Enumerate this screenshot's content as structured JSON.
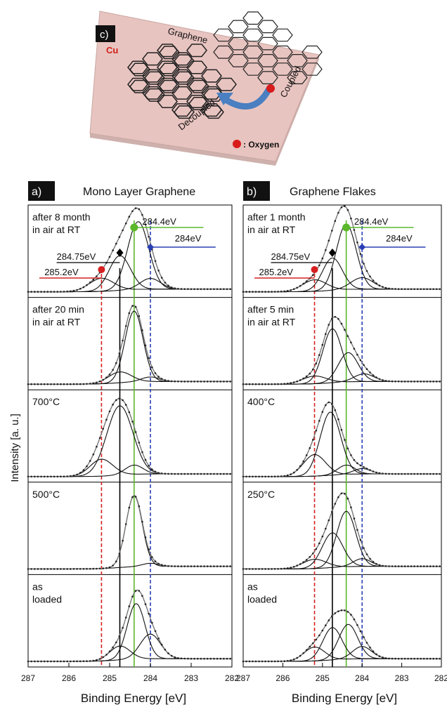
{
  "figure_c": {
    "label": "c)",
    "substrate": "Cu",
    "graphene": "Graphene",
    "coupled": "Coupled",
    "decoupled": "Decoupled",
    "legend_text": ": Oxygen",
    "colors": {
      "cu_surface": "#e8c4c0",
      "cu_edge": "#c9a7a3",
      "oxygen": "#d81b1b",
      "arrow": "#4a7fc1",
      "cu_label": "#d0201a"
    }
  },
  "shared": {
    "ylabel": "Intensity [a. u.]",
    "xlabel": "Binding Energy [eV]",
    "xticks": [
      287,
      286,
      285,
      284,
      283,
      282
    ],
    "xlim": [
      287,
      282
    ],
    "ref_lines": [
      {
        "energy": 285.2,
        "color": "#d62020",
        "style": "dashed"
      },
      {
        "energy": 284.75,
        "color": "#000000",
        "style": "solid"
      },
      {
        "energy": 284.4,
        "color": "#5bb82a",
        "style": "solid"
      },
      {
        "energy": 284.0,
        "color": "#2a3fb5",
        "style": "dashed"
      }
    ],
    "peak_labels": {
      "p1": "285.2eV",
      "p2": "284.75eV",
      "p3": "284.4eV",
      "p4": "284eV"
    }
  },
  "chart_data": [
    {
      "type": "line",
      "panel": "a)",
      "title": "Mono Layer Graphene",
      "xlim": [
        287,
        282
      ],
      "spectra": [
        {
          "label_lines": [
            "after 8 month",
            "in air at RT"
          ],
          "peaks": [
            {
              "c": 285.2,
              "a": 0.17,
              "w": 0.3
            },
            {
              "c": 284.75,
              "a": 0.45,
              "w": 0.26
            },
            {
              "c": 284.3,
              "a": 0.88,
              "w": 0.26
            },
            {
              "c": 284.0,
              "a": 0.14,
              "w": 0.25
            }
          ]
        },
        {
          "label_lines": [
            "after 20 min",
            "in air at RT"
          ],
          "peaks": [
            {
              "c": 284.75,
              "a": 0.14,
              "w": 0.28
            },
            {
              "c": 284.4,
              "a": 0.92,
              "w": 0.22
            },
            {
              "c": 284.0,
              "a": 0.06,
              "w": 0.22
            }
          ]
        },
        {
          "label_lines": [
            "700°C"
          ],
          "peaks": [
            {
              "c": 285.2,
              "a": 0.22,
              "w": 0.28
            },
            {
              "c": 284.75,
              "a": 0.9,
              "w": 0.32
            },
            {
              "c": 284.4,
              "a": 0.12,
              "w": 0.22
            }
          ]
        },
        {
          "label_lines": [
            "500°C"
          ],
          "peaks": [
            {
              "c": 284.4,
              "a": 0.92,
              "w": 0.2
            },
            {
              "c": 284.0,
              "a": 0.04,
              "w": 0.2
            }
          ]
        },
        {
          "label_lines": [
            "as",
            "loaded"
          ],
          "peaks": [
            {
              "c": 284.75,
              "a": 0.18,
              "w": 0.25
            },
            {
              "c": 284.35,
              "a": 0.72,
              "w": 0.22
            },
            {
              "c": 284.0,
              "a": 0.32,
              "w": 0.25
            }
          ]
        }
      ]
    },
    {
      "type": "line",
      "panel": "b)",
      "title": "Graphene Flakes",
      "xlim": [
        287,
        282
      ],
      "spectra": [
        {
          "label_lines": [
            "after 1 month",
            "in air at RT"
          ],
          "peaks": [
            {
              "c": 285.2,
              "a": 0.15,
              "w": 0.3
            },
            {
              "c": 284.75,
              "a": 0.42,
              "w": 0.25
            },
            {
              "c": 284.4,
              "a": 0.85,
              "w": 0.25
            },
            {
              "c": 284.0,
              "a": 0.15,
              "w": 0.28
            }
          ]
        },
        {
          "label_lines": [
            "after 5 min",
            "in air at RT"
          ],
          "peaks": [
            {
              "c": 285.2,
              "a": 0.1,
              "w": 0.3
            },
            {
              "c": 284.75,
              "a": 0.7,
              "w": 0.24
            },
            {
              "c": 284.35,
              "a": 0.38,
              "w": 0.25
            },
            {
              "c": 283.95,
              "a": 0.1,
              "w": 0.25
            }
          ]
        },
        {
          "label_lines": [
            "400°C"
          ],
          "peaks": [
            {
              "c": 285.2,
              "a": 0.28,
              "w": 0.28
            },
            {
              "c": 284.8,
              "a": 0.82,
              "w": 0.26
            },
            {
              "c": 284.4,
              "a": 0.12,
              "w": 0.22
            },
            {
              "c": 284.0,
              "a": 0.07,
              "w": 0.22
            }
          ]
        },
        {
          "label_lines": [
            "250°C"
          ],
          "peaks": [
            {
              "c": 285.2,
              "a": 0.12,
              "w": 0.3
            },
            {
              "c": 284.75,
              "a": 0.45,
              "w": 0.26
            },
            {
              "c": 284.4,
              "a": 0.72,
              "w": 0.24
            },
            {
              "c": 284.0,
              "a": 0.1,
              "w": 0.22
            }
          ]
        },
        {
          "label_lines": [
            "as",
            "loaded"
          ],
          "peaks": [
            {
              "c": 285.2,
              "a": 0.18,
              "w": 0.26
            },
            {
              "c": 284.75,
              "a": 0.42,
              "w": 0.24
            },
            {
              "c": 284.35,
              "a": 0.45,
              "w": 0.24
            },
            {
              "c": 284.0,
              "a": 0.16,
              "w": 0.24
            }
          ]
        }
      ]
    }
  ]
}
